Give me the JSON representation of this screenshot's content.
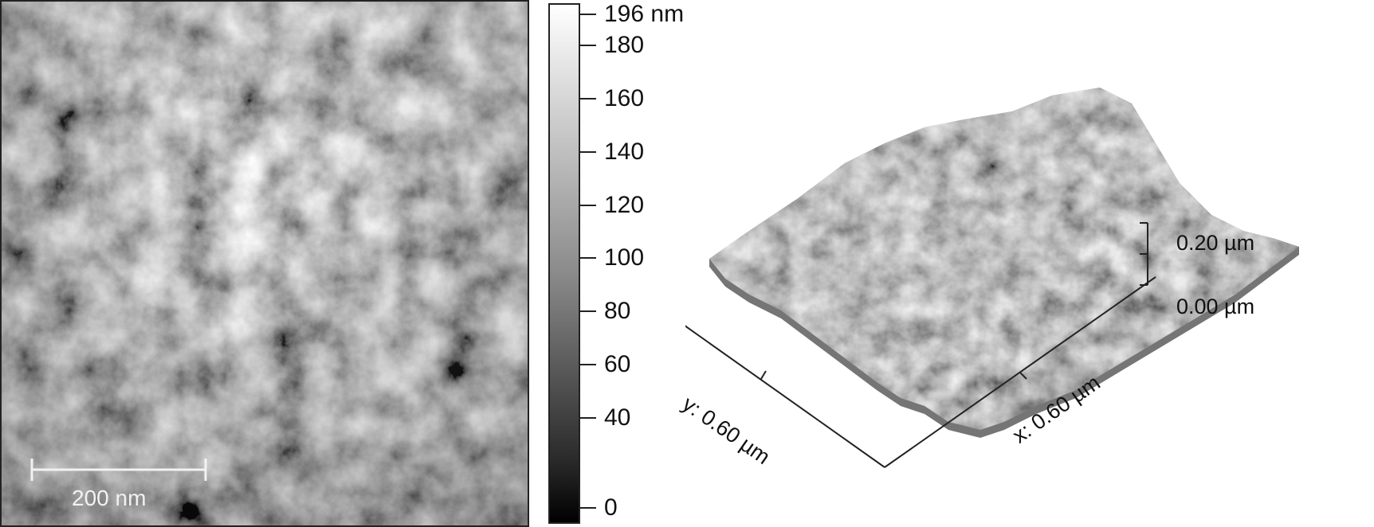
{
  "height_map": {
    "scale_bar_label": "200 nm"
  },
  "color_scale": {
    "labels": [
      "196 nm",
      "180",
      "160",
      "140",
      "120",
      "100",
      "80",
      "60",
      "40",
      "0"
    ],
    "values": [
      196,
      180,
      160,
      140,
      120,
      100,
      80,
      60,
      40,
      0
    ]
  },
  "surface_3d": {
    "y_axis_label": "y: 0.60 µm",
    "x_axis_label": "x: 0.60 µm",
    "z_top_label": "0.20 µm",
    "z_bottom_label": "0.00 µm"
  }
}
